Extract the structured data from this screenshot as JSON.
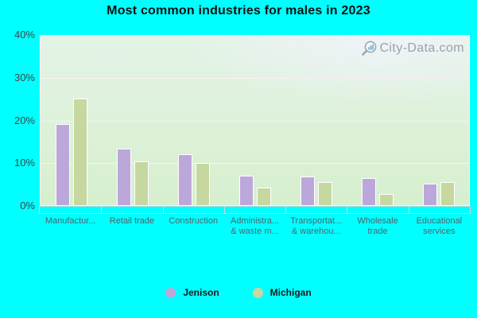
{
  "header": {
    "title": "Most common industries for males in 2023"
  },
  "watermark": {
    "text": "City-Data.com",
    "icon": "magnifier-bars-icon"
  },
  "chart_data": {
    "type": "bar",
    "title": "Most common industries for males in 2023",
    "categories": [
      "Manufactur...",
      "Retail trade",
      "Construction",
      "Administra... & waste m...",
      "Transportat... & warehou...",
      "Wholesale trade",
      "Educational services"
    ],
    "x_tick_label_lines": [
      [
        "Manufactur..."
      ],
      [
        "Retail trade"
      ],
      [
        "Construction"
      ],
      [
        "Administra...",
        "& waste m..."
      ],
      [
        "Transportat...",
        "& warehou..."
      ],
      [
        "Wholesale",
        "trade"
      ],
      [
        "Educational",
        "services"
      ]
    ],
    "series": [
      {
        "name": "Jenison",
        "color": "#bca7db",
        "values": [
          19.1,
          13.4,
          12.0,
          6.9,
          6.8,
          6.3,
          5.0
        ]
      },
      {
        "name": "Michigan",
        "color": "#c6d7a0",
        "values": [
          25.1,
          10.4,
          9.9,
          4.2,
          5.5,
          2.6,
          5.4
        ]
      }
    ],
    "ylim": [
      0,
      40
    ],
    "y_ticks": [
      {
        "value": 40,
        "label": "40%"
      },
      {
        "value": 30,
        "label": "30%"
      },
      {
        "value": 20,
        "label": "20%"
      },
      {
        "value": 10,
        "label": "10%"
      },
      {
        "value": 0,
        "label": "0%"
      }
    ],
    "grid": true,
    "legend_position": "bottom",
    "colors": {
      "page_background": "#00ffff",
      "jenison_bar": "#bca7db",
      "michigan_bar": "#c6d7a0",
      "bar_border": "#ffffff"
    }
  }
}
